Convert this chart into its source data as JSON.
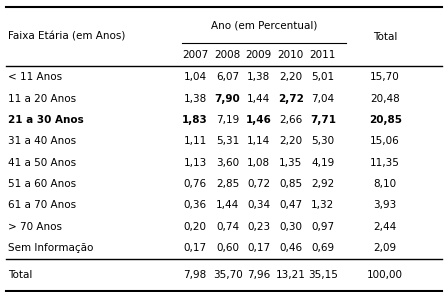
{
  "col_header_top": "Ano (em Percentual)",
  "col_header_sub": [
    "2007",
    "2008",
    "2009",
    "2010",
    "2011"
  ],
  "row_header": "Faixa Etária (em Anos)",
  "last_col": "Total",
  "rows": [
    {
      "label": "< 11 Anos",
      "values": [
        "1,04",
        "6,07",
        "1,38",
        "2,20",
        "5,01"
      ],
      "total": "15,70",
      "bold_cols": [],
      "bold_total": false,
      "bold_label": false
    },
    {
      "label": "11 a 20 Anos",
      "values": [
        "1,38",
        "7,90",
        "1,44",
        "2,72",
        "7,04"
      ],
      "total": "20,48",
      "bold_cols": [
        1,
        3
      ],
      "bold_total": false,
      "bold_label": false
    },
    {
      "label": "21 a 30 Anos",
      "values": [
        "1,83",
        "7,19",
        "1,46",
        "2,66",
        "7,71"
      ],
      "total": "20,85",
      "bold_cols": [
        0,
        2,
        4
      ],
      "bold_total": true,
      "bold_label": true
    },
    {
      "label": "31 a 40 Anos",
      "values": [
        "1,11",
        "5,31",
        "1,14",
        "2,20",
        "5,30"
      ],
      "total": "15,06",
      "bold_cols": [],
      "bold_total": false,
      "bold_label": false
    },
    {
      "label": "41 a 50 Anos",
      "values": [
        "1,13",
        "3,60",
        "1,08",
        "1,35",
        "4,19"
      ],
      "total": "11,35",
      "bold_cols": [],
      "bold_total": false,
      "bold_label": false
    },
    {
      "label": "51 a 60 Anos",
      "values": [
        "0,76",
        "2,85",
        "0,72",
        "0,85",
        "2,92"
      ],
      "total": "8,10",
      "bold_cols": [],
      "bold_total": false,
      "bold_label": false
    },
    {
      "label": "61 a 70 Anos",
      "values": [
        "0,36",
        "1,44",
        "0,34",
        "0,47",
        "1,32"
      ],
      "total": "3,93",
      "bold_cols": [],
      "bold_total": false,
      "bold_label": false
    },
    {
      "label": "> 70 Anos",
      "values": [
        "0,20",
        "0,74",
        "0,23",
        "0,30",
        "0,97"
      ],
      "total": "2,44",
      "bold_cols": [],
      "bold_total": false,
      "bold_label": false
    },
    {
      "label": "Sem Informação",
      "values": [
        "0,17",
        "0,60",
        "0,17",
        "0,46",
        "0,69"
      ],
      "total": "2,09",
      "bold_cols": [],
      "bold_total": false,
      "bold_label": false
    }
  ],
  "total_row": {
    "label": "Total",
    "values": [
      "7,98",
      "35,70",
      "7,96",
      "13,21",
      "35,15"
    ],
    "total": "100,00"
  },
  "bg_color": "#ffffff",
  "text_color": "#000000",
  "font_size": 7.5
}
